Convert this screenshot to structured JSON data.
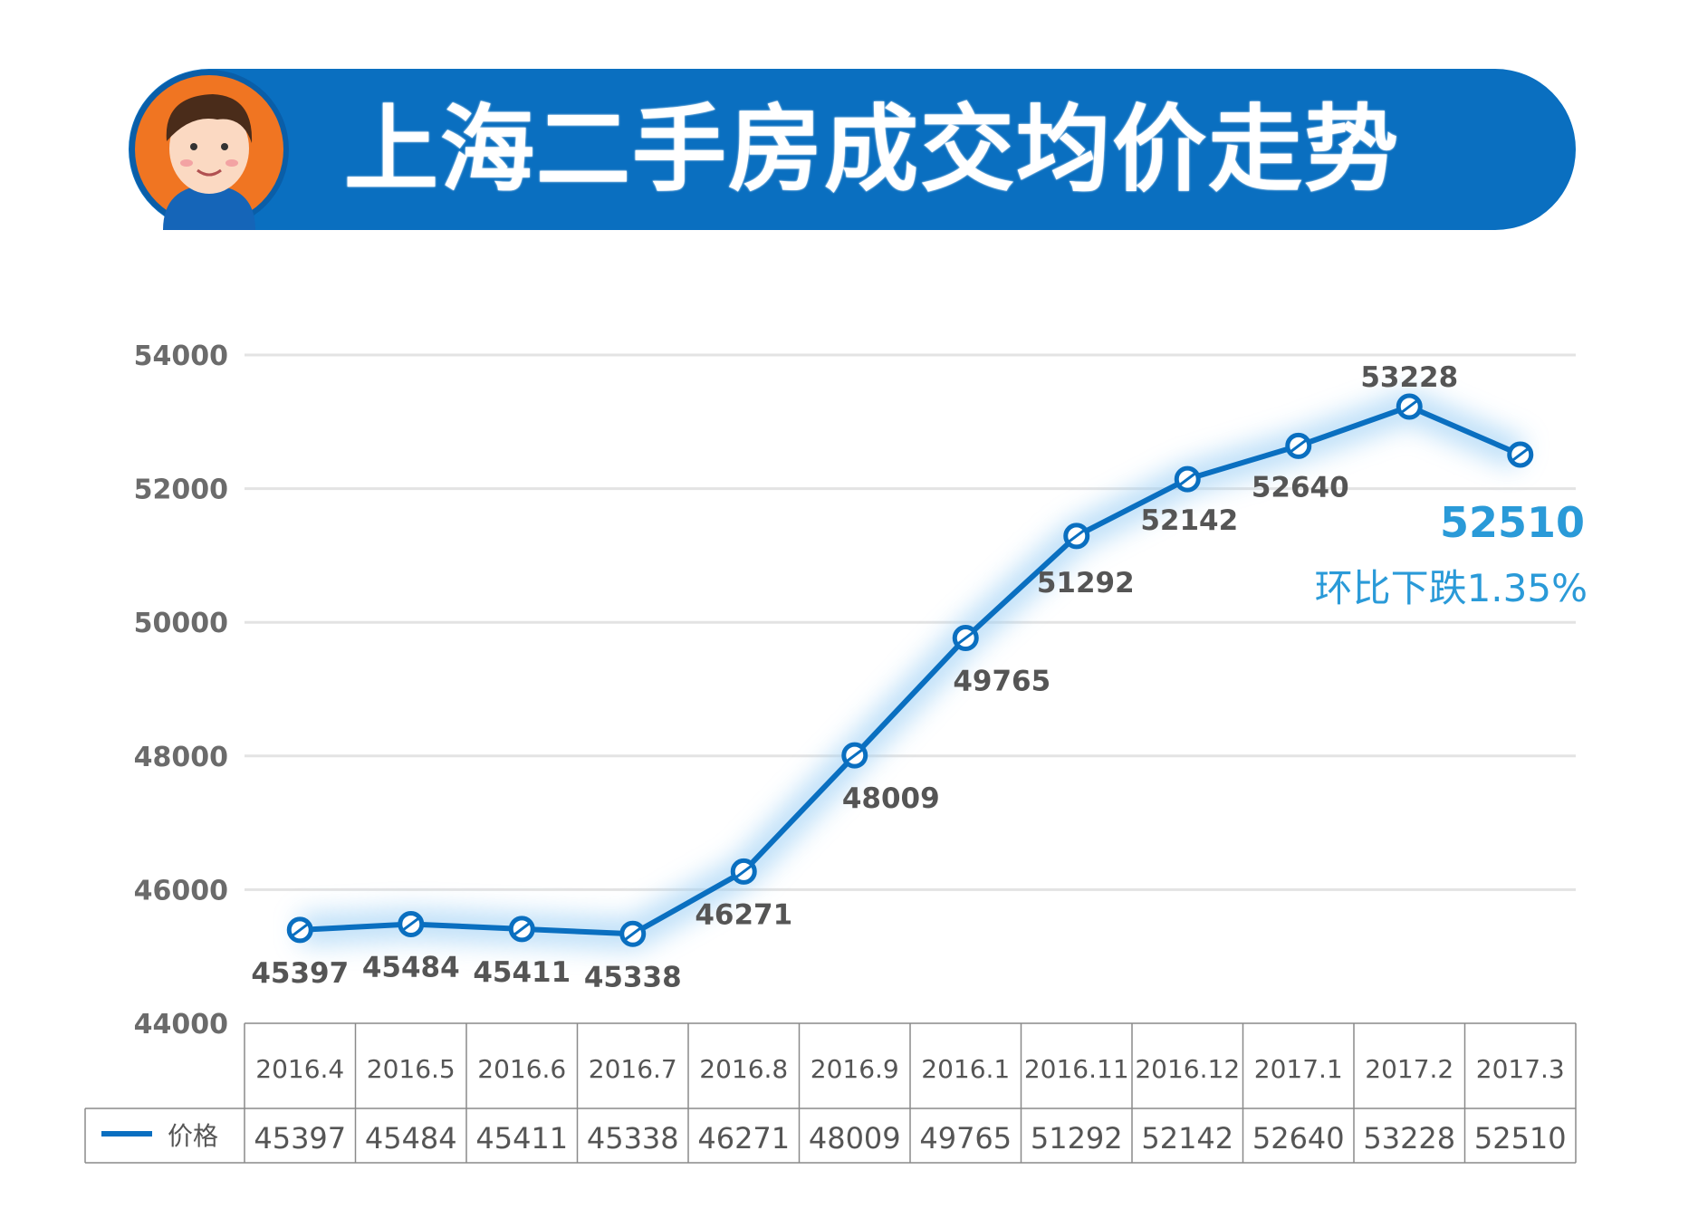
{
  "title": "上海二手房成交均价走势",
  "chart_data": {
    "type": "line",
    "title": "上海二手房成交均价走势",
    "categories": [
      "2016.4",
      "2016.5",
      "2016.6",
      "2016.7",
      "2016.8",
      "2016.9",
      "2016.1",
      "2016.11",
      "2016.12",
      "2017.1",
      "2017.2",
      "2017.3"
    ],
    "series": [
      {
        "name": "价格",
        "values": [
          45397,
          45484,
          45411,
          45338,
          46271,
          48009,
          49765,
          51292,
          52142,
          52640,
          53228,
          52510
        ],
        "color": "#0a6fc0"
      }
    ],
    "ylim": [
      44000,
      54000
    ],
    "yticks": [
      44000,
      46000,
      48000,
      50000,
      52000,
      54000
    ],
    "grid": true,
    "legend": "data-table-left",
    "annotation": {
      "value": "52510",
      "text": "环比下跌1.35%",
      "color": "#2a9ad8"
    }
  },
  "colors": {
    "banner": "#0a6fc0",
    "line": "#0a6fc0",
    "annotation": "#2a9ad8",
    "avatar_bg": "#f07522"
  }
}
